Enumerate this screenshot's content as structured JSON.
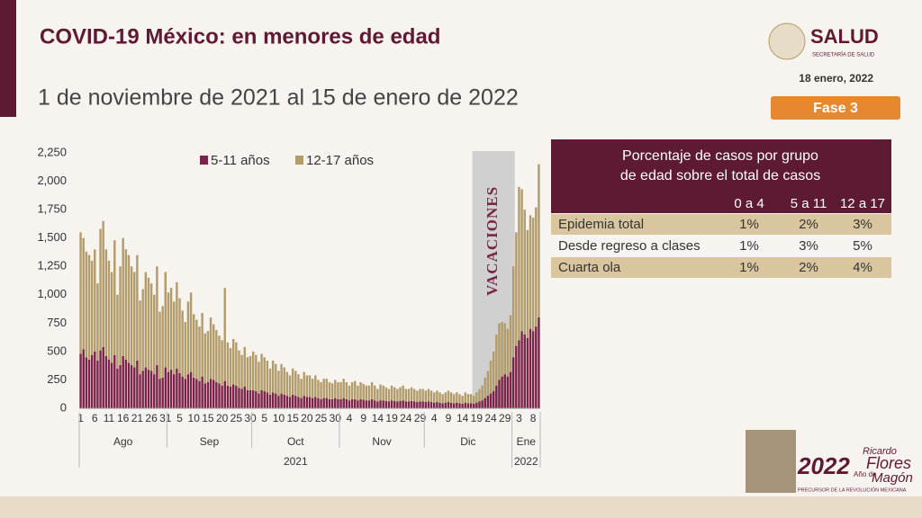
{
  "header": {
    "title": "COVID-19 México: en menores de edad",
    "subtitle": "1 de noviembre de 2021 al 15 de enero de 2022",
    "logo": "SALUD",
    "logo_sub": "SECRETARÍA DE SALUD",
    "date": "18 enero, 2022",
    "phase": "Fase 3"
  },
  "chart_data": {
    "type": "stacked_bar",
    "ylim": [
      0,
      2250
    ],
    "yticks": [
      0,
      250,
      500,
      750,
      {
        "value": 1000,
        "label": "1,000"
      },
      {
        "value": 1250,
        "label": "1,250"
      },
      {
        "value": 1500,
        "label": "1,500"
      },
      {
        "value": 1750,
        "label": "1,750"
      },
      {
        "value": 2000,
        "label": "2,000"
      },
      {
        "value": 2250,
        "label": "2,250"
      }
    ],
    "annotation": "Vacaciones",
    "months": [
      "Ago",
      "Sep",
      "Oct",
      "Nov",
      "Dic",
      "Ene"
    ],
    "years": [
      "2021",
      "2022"
    ],
    "categories": [
      "1",
      null,
      null,
      null,
      null,
      "6",
      null,
      null,
      null,
      null,
      "11",
      null,
      null,
      null,
      null,
      "16",
      null,
      null,
      null,
      null,
      "21",
      null,
      null,
      null,
      null,
      "26",
      null,
      null,
      null,
      null,
      "31",
      null,
      null,
      null,
      null,
      "5",
      null,
      null,
      null,
      null,
      "10",
      null,
      null,
      null,
      null,
      "15",
      null,
      null,
      null,
      null,
      "20",
      null,
      null,
      null,
      null,
      "25",
      null,
      null,
      null,
      null,
      "30",
      null,
      null,
      null,
      null,
      "5",
      null,
      null,
      null,
      null,
      "10",
      null,
      null,
      null,
      null,
      "15",
      null,
      null,
      null,
      null,
      "20",
      null,
      null,
      null,
      null,
      "25",
      null,
      null,
      null,
      null,
      "30",
      null,
      null,
      null,
      null,
      "4",
      null,
      null,
      null,
      null,
      "9",
      null,
      null,
      null,
      null,
      "14",
      null,
      null,
      null,
      null,
      "19",
      null,
      null,
      null,
      null,
      "24",
      null,
      null,
      null,
      null,
      "29",
      null,
      null,
      null,
      null,
      "4",
      null,
      null,
      null,
      null,
      "9",
      null,
      null,
      null,
      null,
      "14",
      null,
      null,
      null,
      null,
      "19",
      null,
      null,
      null,
      null,
      "24",
      null,
      null,
      null,
      null,
      "29",
      null,
      null,
      null,
      null,
      "3",
      null,
      null,
      null,
      null,
      "8",
      null,
      null
    ],
    "series": [
      {
        "name": "5-11 años",
        "color": "#7b2348",
        "values": [
          480,
          520,
          450,
          430,
          470,
          500,
          420,
          510,
          540,
          460,
          430,
          400,
          470,
          350,
          380,
          460,
          430,
          400,
          380,
          360,
          420,
          300,
          330,
          360,
          340,
          330,
          300,
          380,
          260,
          270,
          360,
          320,
          340,
          300,
          350,
          310,
          280,
          260,
          300,
          320,
          270,
          260,
          240,
          280,
          220,
          230,
          260,
          250,
          230,
          220,
          200,
          240,
          200,
          190,
          210,
          200,
          180,
          170,
          190,
          160,
          160,
          160,
          150,
          130,
          160,
          150,
          140,
          120,
          140,
          130,
          110,
          130,
          120,
          110,
          100,
          120,
          110,
          100,
          90,
          110,
          100,
          100,
          90,
          100,
          90,
          80,
          90,
          90,
          80,
          80,
          90,
          80,
          80,
          90,
          80,
          70,
          80,
          80,
          70,
          80,
          75,
          70,
          70,
          80,
          70,
          60,
          70,
          70,
          65,
          60,
          70,
          65,
          60,
          65,
          70,
          60,
          60,
          65,
          60,
          55,
          60,
          60,
          55,
          60,
          55,
          50,
          55,
          50,
          45,
          50,
          55,
          50,
          45,
          50,
          45,
          40,
          50,
          45,
          45,
          40,
          50,
          60,
          70,
          90,
          110,
          130,
          150,
          200,
          250,
          280,
          300,
          280,
          320,
          450,
          550,
          600,
          680,
          650,
          620,
          700,
          680,
          720,
          800
        ]
      },
      {
        "name": "12-17 años",
        "color": "#b39c6b",
        "values": [
          1070,
          980,
          930,
          920,
          830,
          900,
          680,
          1070,
          1110,
          940,
          870,
          800,
          1010,
          650,
          870,
          1040,
          970,
          950,
          870,
          840,
          930,
          650,
          720,
          840,
          810,
          770,
          700,
          870,
          590,
          630,
          840,
          700,
          720,
          640,
          760,
          660,
          580,
          500,
          640,
          700,
          560,
          520,
          480,
          560,
          440,
          450,
          540,
          490,
          460,
          420,
          400,
          820,
          380,
          340,
          400,
          380,
          330,
          300,
          350,
          290,
          300,
          340,
          320,
          280,
          320,
          300,
          280,
          230,
          280,
          260,
          220,
          260,
          240,
          210,
          190,
          230,
          220,
          200,
          170,
          210,
          190,
          190,
          170,
          190,
          160,
          150,
          170,
          170,
          150,
          140,
          160,
          150,
          150,
          170,
          150,
          130,
          150,
          160,
          130,
          150,
          140,
          130,
          130,
          150,
          130,
          110,
          140,
          130,
          120,
          110,
          130,
          120,
          110,
          120,
          130,
          110,
          110,
          120,
          110,
          100,
          110,
          110,
          100,
          110,
          100,
          90,
          100,
          90,
          80,
          90,
          100,
          90,
          80,
          90,
          80,
          70,
          90,
          80,
          80,
          70,
          90,
          110,
          130,
          180,
          220,
          290,
          350,
          450,
          500,
          480,
          450,
          420,
          500,
          800,
          1000,
          1350,
          1250,
          1100,
          950,
          1000,
          1000,
          1050,
          1350
        ]
      }
    ]
  },
  "table": {
    "title_lines": [
      "Porcentaje de casos por grupo",
      "de edad sobre el total de casos"
    ],
    "columns": [
      "0 a 4",
      "5 a 11",
      "12 a 17"
    ],
    "rows": [
      [
        "Epidemia total",
        "1%",
        "2%",
        "3%"
      ],
      [
        "Desde regreso a clases",
        "1%",
        "3%",
        "5%"
      ],
      [
        "Cuarta ola",
        "1%",
        "2%",
        "4%"
      ]
    ]
  },
  "footer": {
    "year": "2022",
    "year_sub": "Año de",
    "name_top": "Ricardo",
    "name_mid": "Flores",
    "name_bot": "Magón",
    "tagline": "PRECURSOR DE LA REVOLUCIÓN MEXICANA"
  }
}
